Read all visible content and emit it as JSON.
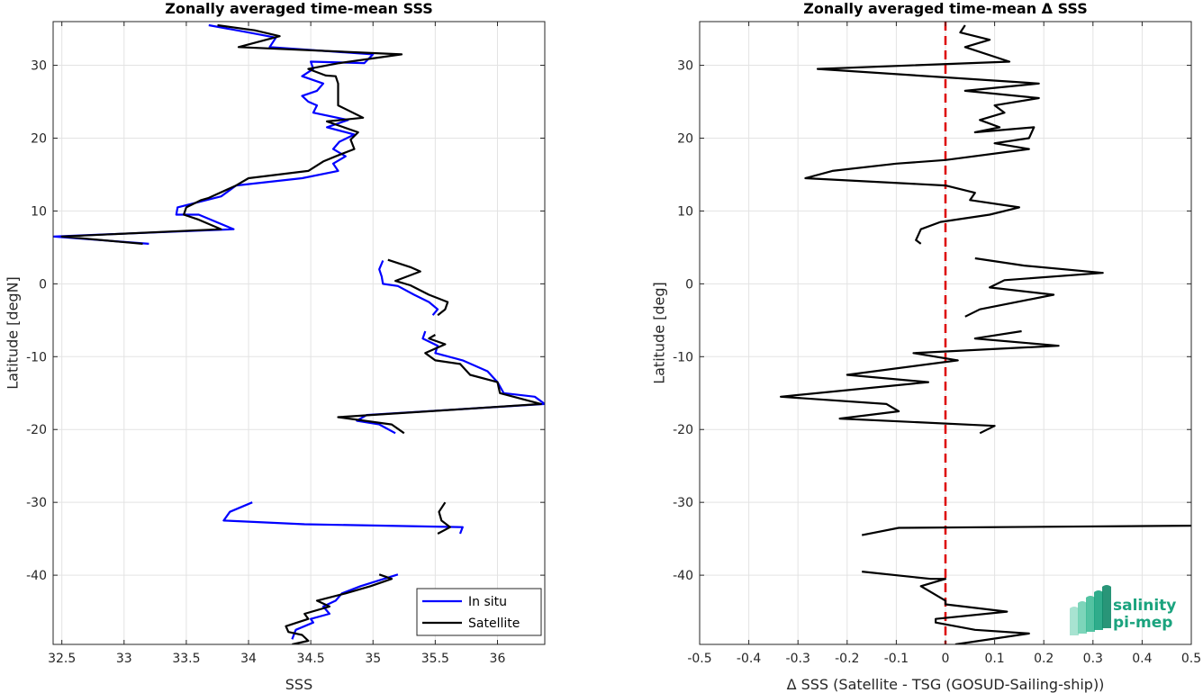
{
  "chart_data": [
    {
      "type": "line",
      "title": "Zonally averaged time-mean SSS",
      "xlabel": "SSS",
      "ylabel": "Latitude [degN]",
      "xlim": [
        32.43,
        36.38
      ],
      "ylim": [
        -49.5,
        36
      ],
      "xticks": [
        32.5,
        33,
        33.5,
        34,
        34.5,
        35,
        35.5,
        36
      ],
      "xtick_labels": [
        "32.5",
        "33",
        "33.5",
        "34",
        "34.5",
        "35",
        "35.5",
        "36"
      ],
      "yticks": [
        -40,
        -30,
        -20,
        -10,
        0,
        10,
        20,
        30
      ],
      "ytick_labels": [
        "-40",
        "-30",
        "-20",
        "-10",
        "0",
        "10",
        "20",
        "30"
      ],
      "grid": true,
      "legend_placement": "bottom-right",
      "series": [
        {
          "name": "In situ",
          "color": "#0000ff",
          "segments": [
            [
              [
                33.68,
                35.5
              ],
              [
                34.0,
                34.5
              ],
              [
                34.22,
                33.8
              ],
              [
                34.17,
                32.5
              ],
              [
                35.0,
                31.5
              ],
              [
                34.93,
                30.3
              ],
              [
                34.5,
                30.5
              ],
              [
                34.52,
                29.5
              ],
              [
                34.43,
                28.5
              ],
              [
                34.6,
                27.5
              ],
              [
                34.55,
                26.5
              ],
              [
                34.43,
                25.8
              ],
              [
                34.48,
                25.0
              ],
              [
                34.55,
                24.5
              ],
              [
                34.52,
                23.5
              ],
              [
                34.8,
                22.5
              ],
              [
                34.63,
                21.5
              ],
              [
                34.85,
                20.5
              ],
              [
                34.73,
                19.5
              ],
              [
                34.68,
                18.5
              ],
              [
                34.78,
                17.5
              ],
              [
                34.68,
                16.5
              ],
              [
                34.72,
                15.5
              ],
              [
                34.43,
                14.5
              ],
              [
                33.9,
                13.5
              ],
              [
                33.78,
                12.0
              ],
              [
                33.43,
                10.5
              ],
              [
                33.42,
                9.5
              ],
              [
                33.6,
                9.5
              ],
              [
                33.88,
                7.5
              ],
              [
                32.43,
                6.5
              ],
              [
                33.2,
                5.5
              ]
            ],
            [
              [
                35.08,
                3.2
              ],
              [
                35.05,
                2.0
              ],
              [
                35.07,
                1.0
              ],
              [
                35.08,
                0.0
              ],
              [
                35.2,
                -0.3
              ],
              [
                35.33,
                -1.5
              ],
              [
                35.45,
                -2.5
              ],
              [
                35.52,
                -3.5
              ],
              [
                35.48,
                -4.3
              ]
            ],
            [
              [
                35.42,
                -6.5
              ],
              [
                35.4,
                -7.5
              ],
              [
                35.52,
                -8.5
              ],
              [
                35.5,
                -9.5
              ],
              [
                35.72,
                -10.5
              ],
              [
                35.92,
                -12.0
              ],
              [
                36.0,
                -13.5
              ],
              [
                36.05,
                -15.0
              ],
              [
                36.3,
                -15.5
              ],
              [
                36.38,
                -16.5
              ],
              [
                34.95,
                -18.0
              ],
              [
                34.87,
                -18.8
              ],
              [
                35.05,
                -19.3
              ],
              [
                35.18,
                -20.5
              ]
            ],
            [
              [
                34.03,
                -30.0
              ],
              [
                33.85,
                -31.3
              ],
              [
                33.8,
                -32.5
              ],
              [
                34.45,
                -33.0
              ],
              [
                35.72,
                -33.4
              ],
              [
                35.7,
                -34.3
              ]
            ],
            [
              [
                35.2,
                -39.9
              ],
              [
                34.9,
                -41.5
              ],
              [
                34.75,
                -42.5
              ],
              [
                34.7,
                -43.5
              ],
              [
                34.6,
                -44.3
              ],
              [
                34.65,
                -45.3
              ],
              [
                34.5,
                -46.0
              ],
              [
                34.52,
                -46.5
              ],
              [
                34.38,
                -47.5
              ],
              [
                34.35,
                -48.8
              ]
            ]
          ]
        },
        {
          "name": "Satellite",
          "color": "#000000",
          "segments": [
            [
              [
                33.75,
                35.5
              ],
              [
                34.05,
                34.8
              ],
              [
                34.25,
                34.0
              ],
              [
                33.92,
                32.5
              ],
              [
                35.23,
                31.5
              ],
              [
                34.73,
                30.3
              ],
              [
                34.48,
                29.5
              ],
              [
                34.62,
                28.6
              ],
              [
                34.7,
                28.5
              ],
              [
                34.72,
                27.5
              ],
              [
                34.72,
                26.5
              ],
              [
                34.72,
                24.5
              ],
              [
                34.92,
                22.8
              ],
              [
                34.63,
                22.3
              ],
              [
                34.88,
                20.8
              ],
              [
                34.82,
                19.8
              ],
              [
                34.85,
                18.5
              ],
              [
                34.7,
                17.5
              ],
              [
                34.6,
                16.8
              ],
              [
                34.48,
                15.5
              ],
              [
                34.0,
                14.5
              ],
              [
                33.9,
                13.5
              ],
              [
                33.68,
                11.8
              ],
              [
                33.62,
                11.5
              ],
              [
                33.5,
                10.5
              ],
              [
                33.48,
                9.5
              ],
              [
                33.6,
                8.8
              ],
              [
                33.78,
                7.5
              ],
              [
                32.5,
                6.5
              ],
              [
                33.15,
                5.5
              ]
            ],
            [
              [
                35.12,
                3.3
              ],
              [
                35.3,
                2.3
              ],
              [
                35.38,
                1.7
              ],
              [
                35.18,
                0.4
              ],
              [
                35.3,
                -0.2
              ],
              [
                35.45,
                -1.5
              ],
              [
                35.6,
                -2.5
              ],
              [
                35.58,
                -3.5
              ],
              [
                35.52,
                -4.3
              ]
            ],
            [
              [
                35.5,
                -7.0
              ],
              [
                35.45,
                -7.5
              ],
              [
                35.58,
                -8.3
              ],
              [
                35.42,
                -9.5
              ],
              [
                35.5,
                -10.5
              ],
              [
                35.7,
                -11.0
              ],
              [
                35.78,
                -12.5
              ],
              [
                36.0,
                -13.5
              ],
              [
                36.02,
                -15.0
              ],
              [
                36.35,
                -16.5
              ],
              [
                34.72,
                -18.3
              ],
              [
                35.15,
                -19.3
              ],
              [
                35.25,
                -20.5
              ]
            ],
            [
              [
                35.58,
                -30.0
              ],
              [
                35.53,
                -31.3
              ],
              [
                35.55,
                -32.5
              ],
              [
                35.62,
                -33.4
              ],
              [
                35.52,
                -34.3
              ]
            ],
            [
              [
                35.05,
                -39.9
              ],
              [
                35.15,
                -40.5
              ],
              [
                34.98,
                -41.5
              ],
              [
                34.78,
                -42.5
              ],
              [
                34.55,
                -43.5
              ],
              [
                34.65,
                -44.3
              ],
              [
                34.45,
                -45.3
              ],
              [
                34.48,
                -46.0
              ],
              [
                34.3,
                -47.0
              ],
              [
                34.32,
                -47.8
              ],
              [
                34.43,
                -48.2
              ],
              [
                34.48,
                -49.0
              ],
              [
                34.35,
                -49.5
              ]
            ]
          ]
        }
      ]
    },
    {
      "type": "line",
      "title": "Zonally averaged time-mean Δ SSS",
      "xlabel": "Δ SSS (Satellite - TSG (GOSUD-Sailing-ship))",
      "ylabel": "Latitude [deg]",
      "xlim": [
        -0.5,
        0.5
      ],
      "ylim": [
        -49.5,
        36
      ],
      "xticks": [
        -0.5,
        -0.4,
        -0.3,
        -0.2,
        -0.1,
        0,
        0.1,
        0.2,
        0.3,
        0.4,
        0.5
      ],
      "xtick_labels": [
        "-0.5",
        "-0.4",
        "-0.3",
        "-0.2",
        "-0.1",
        "0",
        "0.1",
        "0.2",
        "0.3",
        "0.4",
        "0.5"
      ],
      "yticks": [
        -40,
        -30,
        -20,
        -10,
        0,
        10,
        20,
        30
      ],
      "ytick_labels": [
        "-40",
        "-30",
        "-20",
        "-10",
        "0",
        "10",
        "20",
        "30"
      ],
      "grid": true,
      "reference_line": {
        "x": 0,
        "color": "#dd0000",
        "style": "dashed"
      },
      "series": [
        {
          "name": "",
          "color": "#000000",
          "segments": [
            [
              [
                0.04,
                35.5
              ],
              [
                0.03,
                34.5
              ],
              [
                0.09,
                33.5
              ],
              [
                0.04,
                32.5
              ],
              [
                0.13,
                30.5
              ],
              [
                -0.26,
                29.5
              ],
              [
                0.19,
                27.5
              ],
              [
                0.04,
                26.5
              ],
              [
                0.19,
                25.5
              ],
              [
                0.1,
                24.5
              ],
              [
                0.12,
                23.5
              ],
              [
                0.07,
                22.5
              ],
              [
                0.11,
                21.5
              ],
              [
                0.06,
                20.8
              ],
              [
                0.18,
                21.5
              ],
              [
                0.17,
                20.0
              ],
              [
                0.1,
                19.3
              ],
              [
                0.17,
                18.5
              ],
              [
                0.0,
                17.0
              ],
              [
                -0.1,
                16.5
              ],
              [
                -0.23,
                15.5
              ],
              [
                -0.285,
                14.5
              ],
              [
                0.0,
                13.5
              ],
              [
                0.06,
                12.5
              ],
              [
                0.05,
                11.5
              ],
              [
                0.15,
                10.5
              ],
              [
                0.09,
                9.5
              ],
              [
                -0.01,
                8.5
              ],
              [
                -0.05,
                7.5
              ],
              [
                -0.06,
                6.0
              ],
              [
                -0.05,
                5.5
              ]
            ],
            [
              [
                0.06,
                3.5
              ],
              [
                0.16,
                2.5
              ],
              [
                0.32,
                1.5
              ],
              [
                0.12,
                0.5
              ],
              [
                0.09,
                -0.5
              ],
              [
                0.22,
                -1.5
              ],
              [
                0.07,
                -3.5
              ],
              [
                0.04,
                -4.5
              ]
            ],
            [
              [
                0.155,
                -6.5
              ],
              [
                0.06,
                -7.5
              ],
              [
                0.23,
                -8.5
              ],
              [
                -0.065,
                -9.5
              ],
              [
                0.025,
                -10.5
              ],
              [
                -0.2,
                -12.5
              ],
              [
                -0.035,
                -13.5
              ],
              [
                -0.335,
                -15.5
              ],
              [
                -0.12,
                -16.5
              ],
              [
                -0.095,
                -17.5
              ],
              [
                -0.215,
                -18.5
              ],
              [
                0.1,
                -19.5
              ],
              [
                0.07,
                -20.5
              ]
            ],
            [
              [
                -0.17,
                -34.5
              ],
              [
                -0.095,
                -33.5
              ],
              [
                0.5,
                -33.2
              ]
            ],
            [
              [
                -0.17,
                -39.5
              ],
              [
                -0.03,
                -40.5
              ],
              [
                0.0,
                -40.5
              ],
              [
                -0.05,
                -41.5
              ],
              [
                -0.025,
                -42.5
              ],
              [
                0.0,
                -43.5
              ],
              [
                0.0,
                -44.0
              ],
              [
                0.125,
                -45.0
              ],
              [
                -0.02,
                -46.0
              ],
              [
                -0.02,
                -46.5
              ],
              [
                0.06,
                -47.5
              ],
              [
                0.17,
                -48.0
              ],
              [
                0.02,
                -49.5
              ]
            ]
          ]
        }
      ]
    }
  ],
  "legend": {
    "items": [
      {
        "label": "In situ",
        "color": "#0000ff"
      },
      {
        "label": "Satellite",
        "color": "#000000"
      }
    ]
  },
  "logo": {
    "line1": "salinity",
    "line2": "pi-mep",
    "color": "#1aa37e"
  }
}
